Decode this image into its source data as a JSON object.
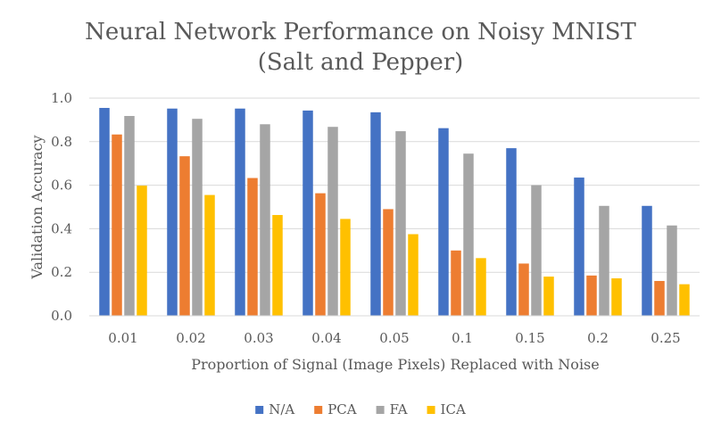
{
  "chart_data": {
    "type": "bar",
    "title": [
      "Neural Network Performance on Noisy MNIST",
      "(Salt and Pepper)"
    ],
    "xlabel": "Proportion of Signal (Image Pixels) Replaced with Noise",
    "ylabel": "Validation Accuracy",
    "ylim": [
      0,
      1.0
    ],
    "yticks": [
      "0.0",
      "0.2",
      "0.4",
      "0.6",
      "0.8",
      "1.0"
    ],
    "grid": true,
    "legend_position": "bottom",
    "categories": [
      "0.01",
      "0.02",
      "0.03",
      "0.04",
      "0.05",
      "0.1",
      "0.15",
      "0.2",
      "0.25"
    ],
    "series": [
      {
        "name": "N/A",
        "color": "#4472c4",
        "values": [
          0.955,
          0.952,
          0.952,
          0.943,
          0.935,
          0.862,
          0.77,
          0.635,
          0.505
        ]
      },
      {
        "name": "PCA",
        "color": "#ed7d31",
        "values": [
          0.833,
          0.733,
          0.633,
          0.563,
          0.49,
          0.3,
          0.24,
          0.185,
          0.16
        ]
      },
      {
        "name": "FA",
        "color": "#a5a5a5",
        "values": [
          0.918,
          0.905,
          0.88,
          0.868,
          0.848,
          0.745,
          0.6,
          0.505,
          0.415
        ]
      },
      {
        "name": "ICA",
        "color": "#ffc000",
        "values": [
          0.598,
          0.555,
          0.463,
          0.445,
          0.375,
          0.265,
          0.18,
          0.172,
          0.145
        ]
      }
    ]
  }
}
